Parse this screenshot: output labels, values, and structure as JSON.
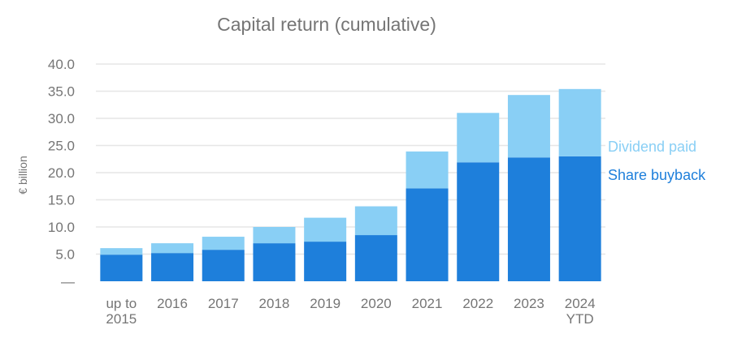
{
  "chart_data": {
    "type": "bar",
    "stacked": true,
    "title": "Capital return (cumulative)",
    "ylabel": "€ billion",
    "xlabel": "",
    "ylim": [
      0,
      40
    ],
    "yticks": [
      "40.0",
      "35.0",
      "30.0",
      "25.0",
      "20.0",
      "15.0",
      "10.0",
      "5.0",
      "—"
    ],
    "categories": [
      [
        "up to",
        "2015"
      ],
      [
        "2016"
      ],
      [
        "2017"
      ],
      [
        "2018"
      ],
      [
        "2019"
      ],
      [
        "2020"
      ],
      [
        "2021"
      ],
      [
        "2022"
      ],
      [
        "2023"
      ],
      [
        "2024",
        "YTD"
      ]
    ],
    "series": [
      {
        "name": "Share buyback",
        "color": "#1e7fdb",
        "values": [
          4.9,
          5.2,
          5.8,
          7.0,
          7.3,
          8.5,
          17.1,
          21.9,
          22.8,
          23.0
        ]
      },
      {
        "name": "Dividend paid",
        "color": "#89cff5",
        "values": [
          1.2,
          1.8,
          2.4,
          3.0,
          4.4,
          5.3,
          6.8,
          9.1,
          11.5,
          12.4
        ]
      }
    ],
    "grid": true,
    "legend_position": "right"
  }
}
